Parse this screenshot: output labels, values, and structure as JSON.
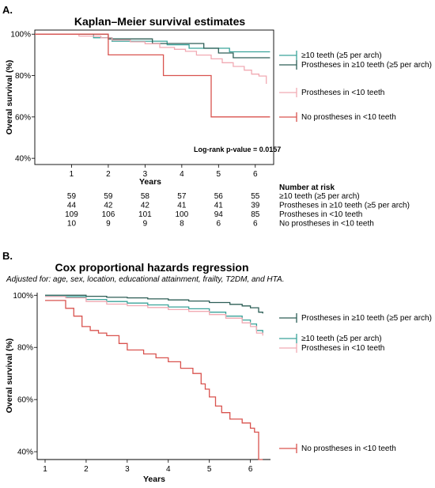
{
  "chart_data": [
    {
      "panel": "A.",
      "type": "line",
      "title": "Kaplan–Meier survival estimates",
      "xlabel": "Years",
      "ylabel": "Overal survival (%)",
      "xlim": [
        0,
        6.5
      ],
      "ylim": [
        37,
        102
      ],
      "x_ticks": [
        1,
        2,
        3,
        4,
        5,
        6
      ],
      "y_ticks": [
        {
          "value": 40,
          "label": "40%"
        },
        {
          "value": 60,
          "label": "60%"
        },
        {
          "value": 80,
          "label": "80%"
        },
        {
          "value": 100,
          "label": "100%"
        }
      ],
      "annotation": "Log-rank p-value = 0.0157",
      "series": [
        {
          "name": "≥10 teeth (≥5 per arch)",
          "color": "#3aa39a",
          "x": [
            0,
            1,
            1.6,
            2.1,
            3.0,
            3.6,
            4.2,
            4.9,
            5.3,
            6.4
          ],
          "y": [
            100,
            100,
            98.3,
            96.6,
            96.6,
            94.9,
            93.2,
            93.2,
            91.5,
            91.5
          ]
        },
        {
          "name": "Prostheses in ≥10 teeth (≥5 per arch)",
          "color": "#2d5e56",
          "x": [
            0,
            1,
            2.0,
            2.7,
            3.2,
            3.9,
            4.6,
            5.0,
            5.4,
            6.4
          ],
          "y": [
            100,
            100,
            97.7,
            97.7,
            95.5,
            95.5,
            93.2,
            90.9,
            88.6,
            88.6
          ]
        },
        {
          "name": "Prostheses in <10 teeth",
          "color": "#f1aab3",
          "x": [
            0,
            1.2,
            1.8,
            2.1,
            2.6,
            3.0,
            3.4,
            3.8,
            4.1,
            4.4,
            4.8,
            5.1,
            5.4,
            5.7,
            5.9,
            6.1,
            6.3
          ],
          "y": [
            100,
            99.1,
            98.2,
            97.2,
            96.3,
            95.4,
            93.6,
            92.7,
            91.7,
            89.9,
            88.1,
            86.2,
            84.4,
            82.6,
            80.7,
            79.8,
            76.0
          ]
        },
        {
          "name": "No prostheses in <10 teeth",
          "color": "#d9534f",
          "x": [
            0,
            1.5,
            2.0,
            3.5,
            4.8,
            6.4
          ],
          "y": [
            100,
            100,
            90,
            80,
            60,
            60
          ]
        }
      ],
      "risk_table": {
        "title": "Number at risk",
        "rows": [
          {
            "values": [
              "59",
              "59",
              "58",
              "57",
              "56",
              "55"
            ],
            "label": "≥10 teeth (≥5 per arch)"
          },
          {
            "values": [
              "44",
              "42",
              "42",
              "41",
              "41",
              "39"
            ],
            "label": "Prostheses in ≥10 teeth (≥5 per arch)"
          },
          {
            "values": [
              "109",
              "106",
              "101",
              "100",
              "94",
              "85"
            ],
            "label": "Prostheses in <10 teeth"
          },
          {
            "values": [
              "10",
              "9",
              "9",
              "8",
              "6",
              "6"
            ],
            "label": "No prostheses in <10 teeth"
          }
        ]
      }
    },
    {
      "panel": "B.",
      "type": "line",
      "title": "Cox proportional hazards regression",
      "subtitle": "Adjusted for: age, sex, location, educational attainment, frailty, T2DM, and HTA.",
      "xlabel": "Years",
      "ylabel": "Overal survival (%)",
      "xlim": [
        1,
        6.45
      ],
      "ylim": [
        37,
        101
      ],
      "x_ticks": [
        1,
        2,
        3,
        4,
        5,
        6
      ],
      "y_ticks": [
        {
          "value": 40,
          "label": "40%"
        },
        {
          "value": 60,
          "label": "60%"
        },
        {
          "value": 80,
          "label": "80%"
        },
        {
          "value": 100,
          "label": "100%"
        }
      ],
      "series": [
        {
          "name": "Prostheses in ≥10 teeth (≥5 per arch)",
          "color": "#2d5e56",
          "x": [
            1,
            1.5,
            2,
            2.5,
            3,
            3.5,
            4,
            4.5,
            5,
            5.5,
            5.8,
            6.0,
            6.2,
            6.3
          ],
          "y": [
            100,
            100,
            99.6,
            99.2,
            99,
            98.6,
            98.2,
            97.8,
            97.2,
            96.5,
            95.9,
            95.2,
            93.5,
            93
          ]
        },
        {
          "name": "≥10 teeth (≥5 per arch)",
          "color": "#3aa39a",
          "x": [
            1,
            1.5,
            2,
            2.5,
            3,
            3.5,
            4,
            4.5,
            5,
            5.4,
            5.8,
            6.0,
            6.15,
            6.3
          ],
          "y": [
            99.7,
            99.4,
            98.4,
            97.6,
            97,
            96.3,
            95.5,
            94.8,
            93.5,
            92.0,
            90.5,
            89,
            86.5,
            85.5
          ]
        },
        {
          "name": "Prostheses in <10 teeth",
          "color": "#f1aab3",
          "x": [
            1,
            1.5,
            2,
            2.5,
            3,
            3.5,
            4,
            4.5,
            5,
            5.4,
            5.8,
            6.0,
            6.15,
            6.3
          ],
          "y": [
            99.5,
            99,
            97.6,
            96.6,
            96,
            95.3,
            94.5,
            93.8,
            92.6,
            91.2,
            89.4,
            88,
            85.5,
            84.5
          ]
        },
        {
          "name": "No prostheses in <10 teeth",
          "color": "#d9534f",
          "x": [
            1,
            1.35,
            1.5,
            1.7,
            1.9,
            2.1,
            2.3,
            2.5,
            2.8,
            3.0,
            3.4,
            3.7,
            4.0,
            4.3,
            4.6,
            4.8,
            4.9,
            5.0,
            5.15,
            5.3,
            5.5,
            5.8,
            6.0,
            6.1,
            6.2,
            6.3
          ],
          "y": [
            98,
            98,
            95,
            92,
            88,
            86.5,
            85.5,
            84.5,
            81.5,
            79,
            77.5,
            76,
            74.5,
            72,
            70,
            66,
            64,
            61,
            57.5,
            55,
            52.5,
            51,
            49,
            47.5,
            37,
            37
          ]
        }
      ]
    }
  ]
}
